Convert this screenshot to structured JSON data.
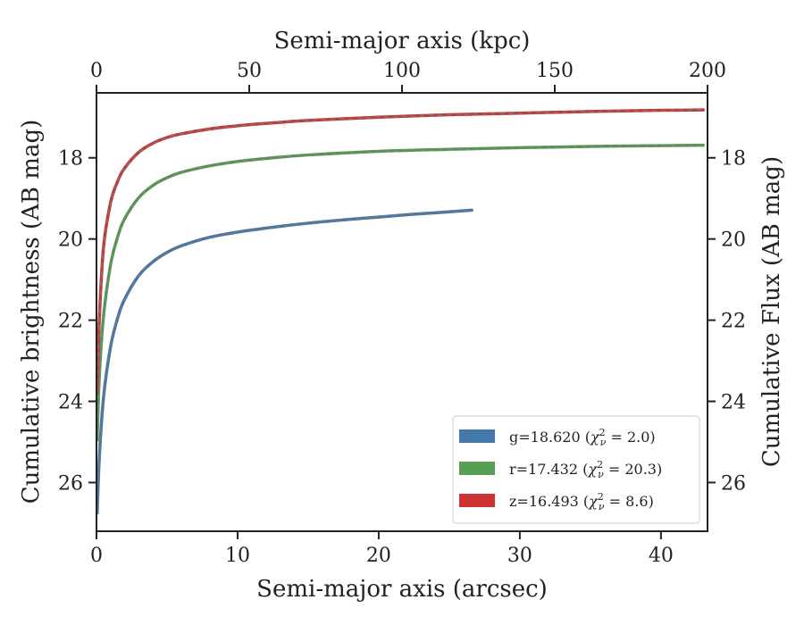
{
  "chart_data": {
    "type": "line",
    "xlabel": "Semi-major axis (arcsec)",
    "x_top_label": "Semi-major axis (kpc)",
    "ylabel": "Cumulative brightness (AB mag)",
    "y_right_label": "Cumulative Flux (AB mag)",
    "xlim": [
      0,
      43.3
    ],
    "x_top_lim": [
      0,
      200
    ],
    "ylim_inverted": [
      27.2,
      16.4
    ],
    "x_ticks": [
      0,
      10,
      20,
      30,
      40
    ],
    "x_top_ticks": [
      0,
      50,
      100,
      150,
      200
    ],
    "y_ticks": [
      18,
      20,
      22,
      24,
      26
    ],
    "grid": false,
    "legend_position": "lower-right",
    "series": [
      {
        "name": "g",
        "legend": {
          "prefix": "g=18.620 (",
          "chi_label": "ν",
          "suffix": " = 2.0)"
        },
        "color": "#4477aa",
        "x": [
          0.05,
          0.2,
          0.5,
          1.0,
          1.5,
          2.0,
          3.0,
          4.0,
          5.0,
          6.0,
          8.0,
          10.0,
          12.5,
          15.0,
          17.5,
          20.0,
          22.5,
          25.0,
          26.6
        ],
        "y": [
          26.75,
          25.4,
          23.9,
          22.65,
          21.95,
          21.48,
          20.9,
          20.56,
          20.33,
          20.17,
          19.96,
          19.83,
          19.71,
          19.61,
          19.53,
          19.46,
          19.39,
          19.33,
          19.29
        ]
      },
      {
        "name": "r",
        "legend": {
          "prefix": "r=17.432 (",
          "chi_label": "ν",
          "suffix": " = 20.3)"
        },
        "color": "#55a055",
        "x": [
          0.05,
          0.2,
          0.5,
          1.0,
          1.5,
          2.0,
          3.0,
          4.0,
          5.0,
          6.0,
          8.0,
          10.0,
          12.5,
          15.0,
          20.0,
          25.0,
          30.0,
          35.0,
          40.0,
          43.0
        ],
        "y": [
          24.95,
          23.4,
          21.9,
          20.63,
          19.95,
          19.5,
          18.98,
          18.68,
          18.49,
          18.36,
          18.2,
          18.09,
          18.0,
          17.93,
          17.84,
          17.79,
          17.75,
          17.72,
          17.7,
          17.69
        ]
      },
      {
        "name": "z",
        "legend": {
          "prefix": "z=16.493 (",
          "chi_label": "ν",
          "suffix": " = 8.6)"
        },
        "color": "#cc3333",
        "x": [
          0.05,
          0.2,
          0.5,
          1.0,
          1.5,
          2.0,
          3.0,
          4.0,
          5.0,
          6.0,
          8.0,
          10.0,
          12.5,
          15.0,
          20.0,
          25.0,
          30.0,
          35.0,
          40.0,
          43.0
        ],
        "y": [
          23.8,
          22.0,
          20.2,
          19.1,
          18.58,
          18.25,
          17.86,
          17.64,
          17.5,
          17.41,
          17.29,
          17.21,
          17.14,
          17.08,
          17.0,
          16.94,
          16.9,
          16.86,
          16.83,
          16.82
        ]
      }
    ]
  }
}
